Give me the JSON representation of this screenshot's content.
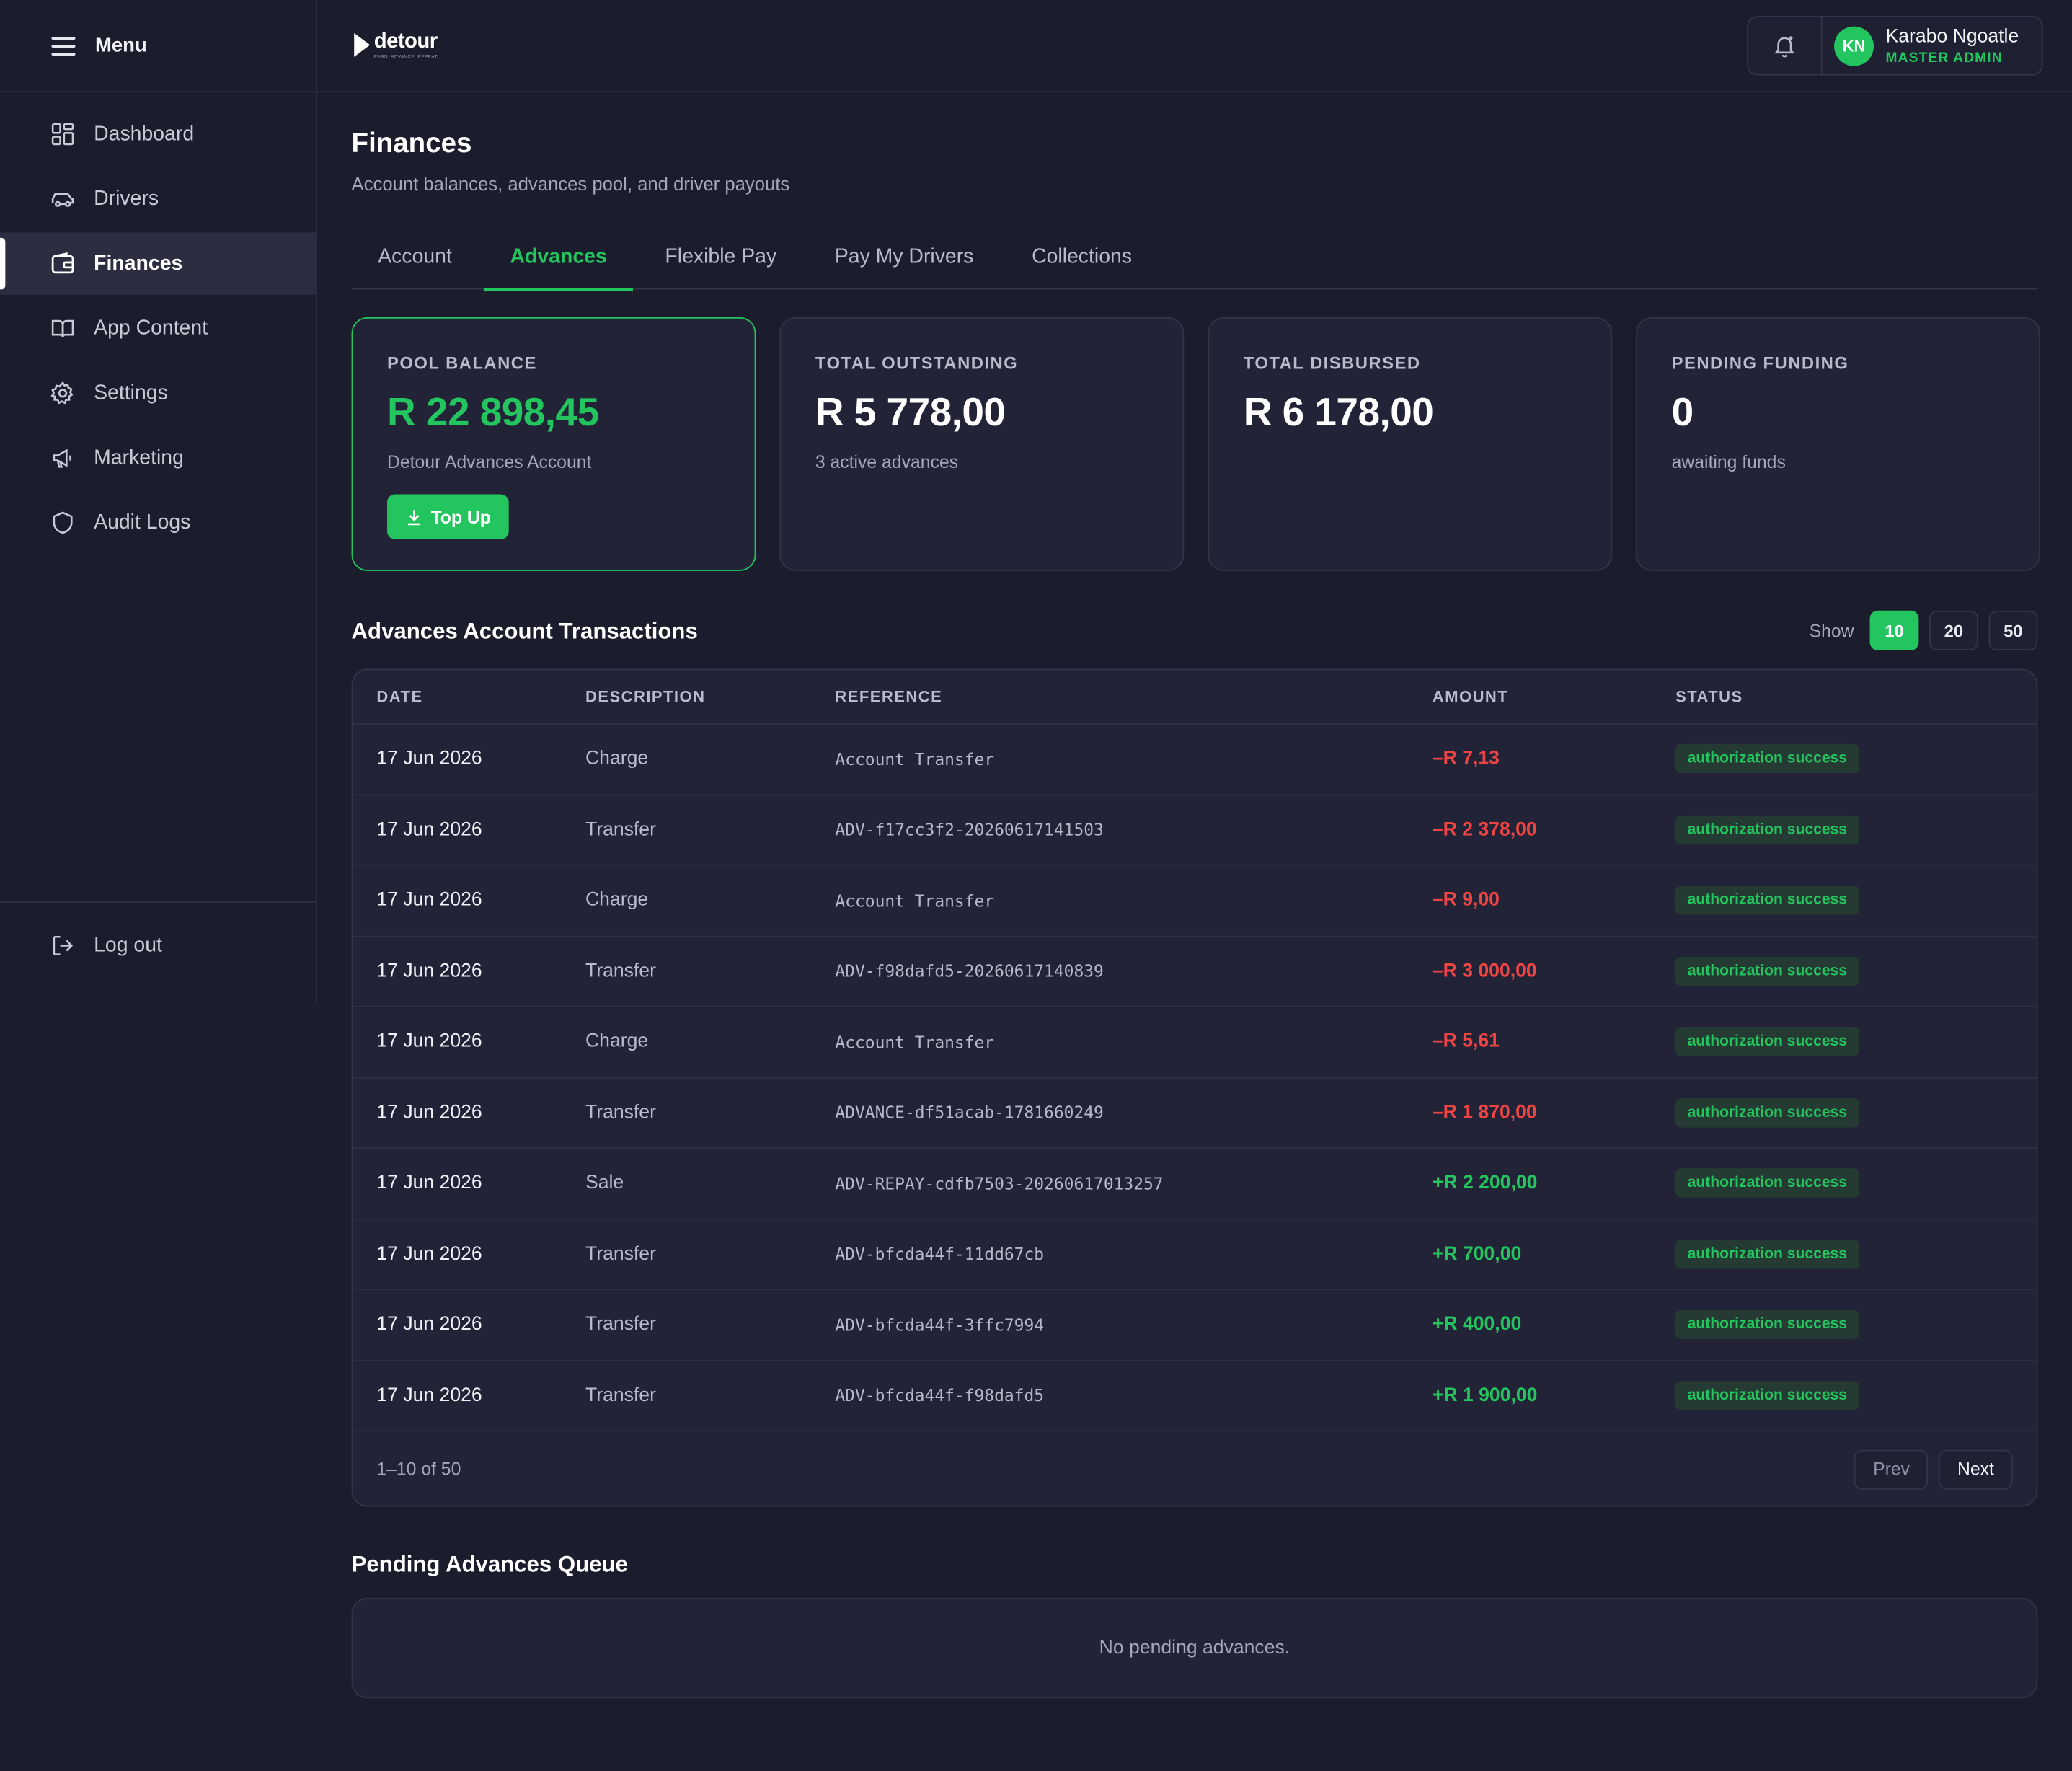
{
  "sidebar": {
    "menu_label": "Menu",
    "items": [
      {
        "label": "Dashboard",
        "icon": "dashboard-icon"
      },
      {
        "label": "Drivers",
        "icon": "car-icon"
      },
      {
        "label": "Finances",
        "icon": "wallet-icon",
        "active": true
      },
      {
        "label": "App Content",
        "icon": "book-icon"
      },
      {
        "label": "Settings",
        "icon": "gear-icon"
      },
      {
        "label": "Marketing",
        "icon": "megaphone-icon"
      },
      {
        "label": "Audit Logs",
        "icon": "shield-icon"
      }
    ],
    "logout_label": "Log out"
  },
  "brand": {
    "name": "detour",
    "tagline": "EARN. ADVANCE. REPEAT."
  },
  "user": {
    "initials": "KN",
    "name": "Karabo Ngoatle",
    "role": "MASTER ADMIN"
  },
  "page": {
    "title": "Finances",
    "subtitle": "Account balances, advances pool, and driver payouts"
  },
  "tabs": [
    {
      "label": "Account"
    },
    {
      "label": "Advances",
      "active": true
    },
    {
      "label": "Flexible Pay"
    },
    {
      "label": "Pay My Drivers"
    },
    {
      "label": "Collections"
    }
  ],
  "cards": {
    "pool": {
      "title": "POOL BALANCE",
      "value": "R 22 898,45",
      "sub": "Detour Advances Account",
      "button": "Top Up"
    },
    "outstanding": {
      "title": "TOTAL OUTSTANDING",
      "value": "R 5 778,00",
      "sub": "3 active advances"
    },
    "disbursed": {
      "title": "TOTAL DISBURSED",
      "value": "R 6 178,00"
    },
    "pending": {
      "title": "PENDING FUNDING",
      "value": "0",
      "sub": "awaiting funds"
    }
  },
  "transactions": {
    "title": "Advances Account Transactions",
    "show_label": "Show",
    "page_sizes": [
      "10",
      "20",
      "50"
    ],
    "selected_page_size": "10",
    "columns": [
      "DATE",
      "DESCRIPTION",
      "REFERENCE",
      "AMOUNT",
      "STATUS"
    ],
    "rows": [
      {
        "date": "17 Jun 2026",
        "desc": "Charge",
        "ref": "Account Transfer",
        "amount": "–R 7,13",
        "sign": "neg",
        "status": "authorization success"
      },
      {
        "date": "17 Jun 2026",
        "desc": "Transfer",
        "ref": "ADV-f17cc3f2-20260617141503",
        "amount": "–R 2 378,00",
        "sign": "neg",
        "status": "authorization success"
      },
      {
        "date": "17 Jun 2026",
        "desc": "Charge",
        "ref": "Account Transfer",
        "amount": "–R 9,00",
        "sign": "neg",
        "status": "authorization success"
      },
      {
        "date": "17 Jun 2026",
        "desc": "Transfer",
        "ref": "ADV-f98dafd5-20260617140839",
        "amount": "–R 3 000,00",
        "sign": "neg",
        "status": "authorization success"
      },
      {
        "date": "17 Jun 2026",
        "desc": "Charge",
        "ref": "Account Transfer",
        "amount": "–R 5,61",
        "sign": "neg",
        "status": "authorization success"
      },
      {
        "date": "17 Jun 2026",
        "desc": "Transfer",
        "ref": "ADVANCE-df51acab-1781660249",
        "amount": "–R 1 870,00",
        "sign": "neg",
        "status": "authorization success"
      },
      {
        "date": "17 Jun 2026",
        "desc": "Sale",
        "ref": "ADV-REPAY-cdfb7503-20260617013257",
        "amount": "+R 2 200,00",
        "sign": "pos",
        "status": "authorization success"
      },
      {
        "date": "17 Jun 2026",
        "desc": "Transfer",
        "ref": "ADV-bfcda44f-11dd67cb",
        "amount": "+R 700,00",
        "sign": "pos",
        "status": "authorization success"
      },
      {
        "date": "17 Jun 2026",
        "desc": "Transfer",
        "ref": "ADV-bfcda44f-3ffc7994",
        "amount": "+R 400,00",
        "sign": "pos",
        "status": "authorization success"
      },
      {
        "date": "17 Jun 2026",
        "desc": "Transfer",
        "ref": "ADV-bfcda44f-f98dafd5",
        "amount": "+R 1 900,00",
        "sign": "pos",
        "status": "authorization success"
      }
    ],
    "range_text": "1–10 of 50",
    "prev_label": "Prev",
    "next_label": "Next"
  },
  "pending_queue": {
    "title": "Pending Advances Queue",
    "empty_text": "No pending advances."
  },
  "colors": {
    "accent": "#22c55e",
    "negative": "#ef4444",
    "background": "#1b1c2c",
    "card": "#222337"
  }
}
